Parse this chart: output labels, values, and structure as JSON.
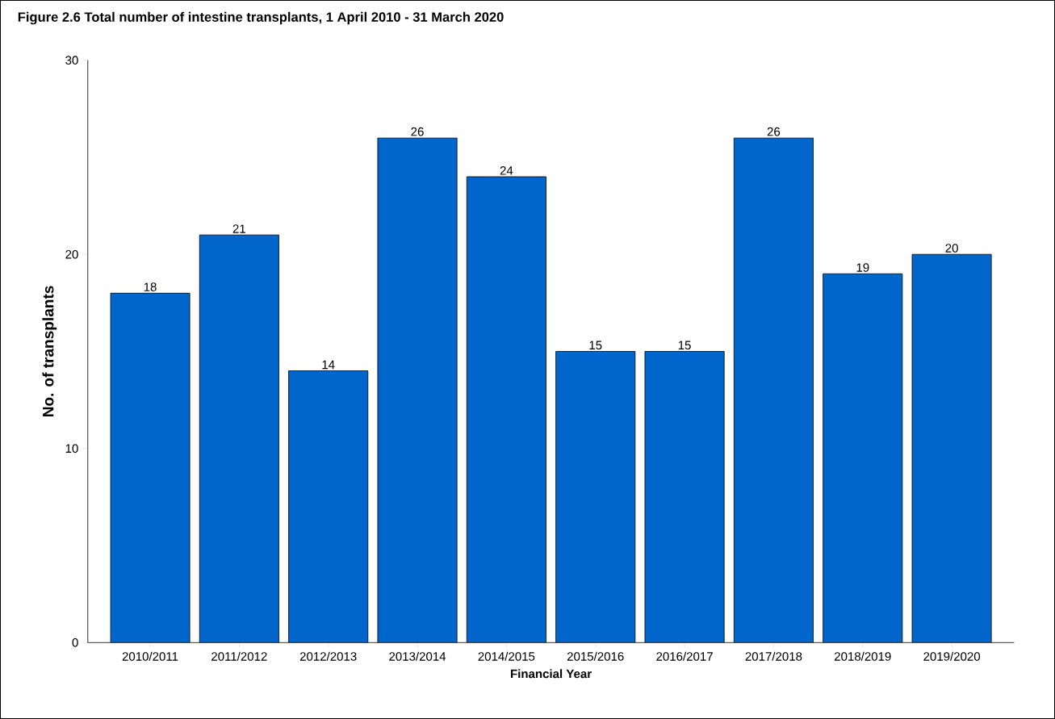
{
  "chart_data": {
    "type": "bar",
    "title": "Figure 2.6      Total number of intestine transplants, 1 April 2010 - 31 March 2020",
    "xlabel": "Financial Year",
    "ylabel": "No. of transplants",
    "categories": [
      "2010/2011",
      "2011/2012",
      "2012/2013",
      "2013/2014",
      "2014/2015",
      "2015/2016",
      "2016/2017",
      "2017/2018",
      "2018/2019",
      "2019/2020"
    ],
    "values": [
      18,
      21,
      14,
      26,
      24,
      15,
      15,
      26,
      19,
      20
    ],
    "color": "#0066cc",
    "ylim": [
      0,
      30
    ],
    "yticks": [
      0,
      10,
      20,
      30
    ],
    "data_labels": true
  }
}
